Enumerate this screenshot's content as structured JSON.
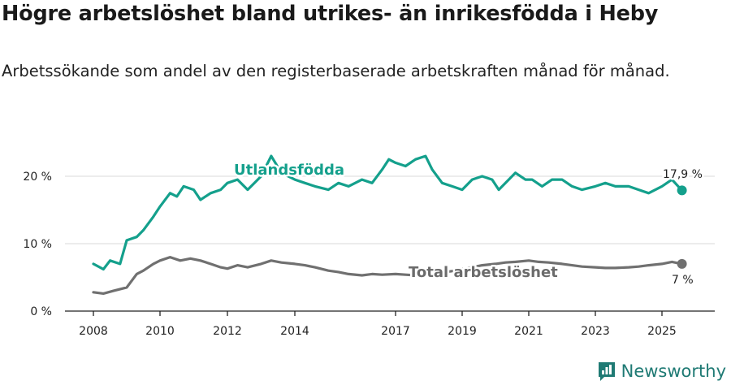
{
  "title": "Högre arbetslöshet bland utrikes- än inrikesfödda i Heby",
  "subtitle": "Arbetssökande som andel av den registerbaserade arbetskraften månad för månad.",
  "brand": {
    "name": "Newsworthy",
    "color": "#1f7a74",
    "icon": "bar-chart-logo-icon"
  },
  "chart_data": {
    "type": "line",
    "x_ticks": [
      "2008",
      "2010",
      "2012",
      "2014",
      "2017",
      "2019",
      "2021",
      "2023",
      "2025"
    ],
    "y_ticks": [
      "0 %",
      "10 %",
      "20 %"
    ],
    "ylim": [
      0,
      25
    ],
    "grid": true,
    "series": [
      {
        "name": "Utlandsfödda",
        "color": "#14a08c",
        "end_label": "17,9 %",
        "x": [
          2008.0,
          2008.3,
          2008.5,
          2008.8,
          2009.0,
          2009.3,
          2009.5,
          2009.8,
          2010.0,
          2010.3,
          2010.5,
          2010.7,
          2011.0,
          2011.2,
          2011.5,
          2011.8,
          2012.0,
          2012.3,
          2012.6,
          2013.0,
          2013.3,
          2013.6,
          2014.0,
          2014.3,
          2014.6,
          2015.0,
          2015.3,
          2015.6,
          2016.0,
          2016.3,
          2016.6,
          2016.8,
          2017.0,
          2017.3,
          2017.6,
          2017.9,
          2018.1,
          2018.4,
          2018.7,
          2019.0,
          2019.3,
          2019.6,
          2019.9,
          2020.1,
          2020.4,
          2020.6,
          2020.9,
          2021.1,
          2021.4,
          2021.7,
          2022.0,
          2022.3,
          2022.6,
          2023.0,
          2023.3,
          2023.6,
          2024.0,
          2024.3,
          2024.6,
          2025.0,
          2025.3,
          2025.6
        ],
        "values": [
          7.0,
          6.2,
          7.5,
          7.0,
          10.5,
          11.0,
          12.0,
          14.0,
          15.5,
          17.5,
          17.0,
          18.5,
          18.0,
          16.5,
          17.5,
          18.0,
          19.0,
          19.5,
          18.0,
          20.0,
          23.0,
          20.5,
          19.5,
          19.0,
          18.5,
          18.0,
          19.0,
          18.5,
          19.5,
          19.0,
          21.0,
          22.5,
          22.0,
          21.5,
          22.5,
          23.0,
          21.0,
          19.0,
          18.5,
          18.0,
          19.5,
          20.0,
          19.5,
          18.0,
          19.5,
          20.5,
          19.5,
          19.5,
          18.5,
          19.5,
          19.5,
          18.5,
          18.0,
          18.5,
          19.0,
          18.5,
          18.5,
          18.0,
          17.5,
          18.5,
          19.5,
          17.9
        ]
      },
      {
        "name": "Total arbetslöshet",
        "color": "#707070",
        "end_label": "7 %",
        "x": [
          2008.0,
          2008.3,
          2008.6,
          2009.0,
          2009.3,
          2009.5,
          2009.8,
          2010.0,
          2010.3,
          2010.6,
          2010.9,
          2011.2,
          2011.5,
          2011.8,
          2012.0,
          2012.3,
          2012.6,
          2013.0,
          2013.3,
          2013.6,
          2014.0,
          2014.3,
          2014.6,
          2015.0,
          2015.3,
          2015.6,
          2016.0,
          2016.3,
          2016.6,
          2017.0,
          2017.3,
          2017.6,
          2017.9,
          2018.2,
          2018.5,
          2018.8,
          2019.0,
          2019.3,
          2019.6,
          2020.0,
          2020.3,
          2020.6,
          2021.0,
          2021.3,
          2021.6,
          2022.0,
          2022.3,
          2022.6,
          2023.0,
          2023.3,
          2023.6,
          2024.0,
          2024.3,
          2024.6,
          2025.0,
          2025.3,
          2025.6
        ],
        "values": [
          2.8,
          2.6,
          3.0,
          3.5,
          5.5,
          6.0,
          7.0,
          7.5,
          8.0,
          7.5,
          7.8,
          7.5,
          7.0,
          6.5,
          6.3,
          6.8,
          6.5,
          7.0,
          7.5,
          7.2,
          7.0,
          6.8,
          6.5,
          6.0,
          5.8,
          5.5,
          5.3,
          5.5,
          5.4,
          5.5,
          5.4,
          5.3,
          5.4,
          5.6,
          5.8,
          6.0,
          6.2,
          6.5,
          6.8,
          7.0,
          7.2,
          7.3,
          7.5,
          7.3,
          7.2,
          7.0,
          6.8,
          6.6,
          6.5,
          6.4,
          6.4,
          6.5,
          6.6,
          6.8,
          7.0,
          7.3,
          7.0
        ]
      }
    ]
  }
}
